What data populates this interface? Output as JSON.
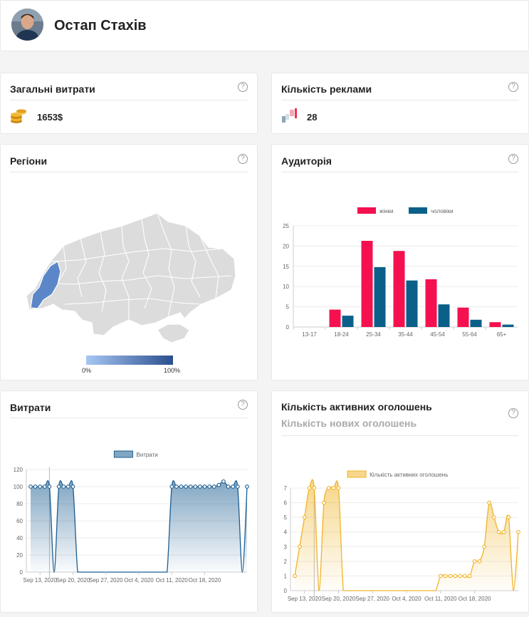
{
  "profile": {
    "name": "Остап Стахів"
  },
  "spend_total": {
    "title": "Загальні витрати",
    "value": "1653$",
    "icon": "coins-icon"
  },
  "ads_count": {
    "title": "Кількість реклами",
    "value": "28",
    "icon": "ads-icon"
  },
  "regions": {
    "title": "Регіони",
    "legend_min": "0%",
    "legend_max": "100%",
    "colors": {
      "base": "#dcdcdc",
      "highlight": "#5b87c9",
      "gradient_start": "#a7c6f3",
      "gradient_end": "#2b4f8f"
    }
  },
  "audience": {
    "title": "Аудиторія",
    "chart_data": {
      "type": "bar",
      "categories": [
        "13-17",
        "18-24",
        "25-34",
        "35-44",
        "45-54",
        "55-64",
        "65+"
      ],
      "series": [
        {
          "name": "жінки",
          "color": "#f5104f",
          "values": [
            0,
            4.3,
            21.3,
            18.8,
            11.8,
            4.8,
            1.2
          ]
        },
        {
          "name": "чоловіки",
          "color": "#0b6089",
          "values": [
            0,
            2.8,
            14.8,
            11.5,
            5.6,
            1.8,
            0.6
          ]
        }
      ],
      "ylim": [
        0,
        25
      ],
      "yticks": [
        "0",
        "5",
        "10",
        "15",
        "20",
        "25"
      ],
      "legend_position": "top",
      "grid": true
    }
  },
  "spend": {
    "title": "Витрати",
    "chart_data": {
      "type": "area",
      "series": [
        {
          "name": "Витрати",
          "color": "#1c5e92",
          "values": [
            100,
            100,
            100,
            100,
            100,
            0,
            100,
            100,
            100,
            100,
            0,
            0,
            0,
            0,
            0,
            0,
            0,
            0,
            0,
            0,
            0,
            0,
            0,
            0,
            0,
            0,
            0,
            0,
            0,
            0,
            100,
            100,
            100,
            100,
            100,
            100,
            100,
            100,
            100,
            100,
            102,
            106,
            100,
            100,
            100,
            0,
            100
          ]
        }
      ],
      "ylim": [
        0,
        120
      ],
      "yticks": [
        "0",
        "20",
        "40",
        "60",
        "80",
        "100",
        "120"
      ],
      "xtick_labels": [
        "Sep 13, 2020",
        "Sep 20, 2020",
        "Sep 27, 2020",
        "Oct 4, 2020",
        "Oct 11, 2020",
        "Oct 18, 2020"
      ],
      "legend_position": "top",
      "grid": true
    }
  },
  "active_ads": {
    "title": "Кількість активних оголошень",
    "subtitle": "Кількість нових оголошень",
    "chart_data": {
      "type": "area",
      "series": [
        {
          "name": "Кількість активних оголошень",
          "color": "#f0b429",
          "values": [
            1,
            3,
            5,
            7,
            7,
            0,
            6,
            7,
            7,
            7,
            0,
            0,
            0,
            0,
            0,
            0,
            0,
            0,
            0,
            0,
            0,
            0,
            0,
            0,
            0,
            0,
            0,
            0,
            0,
            0,
            1,
            1,
            1,
            1,
            1,
            1,
            1,
            2,
            2,
            3,
            6,
            5,
            4,
            4,
            5,
            0,
            4
          ]
        }
      ],
      "ylim": [
        0,
        7
      ],
      "yticks": [
        "0",
        "1",
        "2",
        "3",
        "4",
        "5",
        "6",
        "7"
      ],
      "xtick_labels": [
        "Sep 13, 2020",
        "Sep 20, 2020",
        "Sep 27, 2020",
        "Oct 4, 2020",
        "Oct 11, 2020",
        "Oct 18, 2020"
      ],
      "legend_position": "top",
      "grid": true
    }
  }
}
